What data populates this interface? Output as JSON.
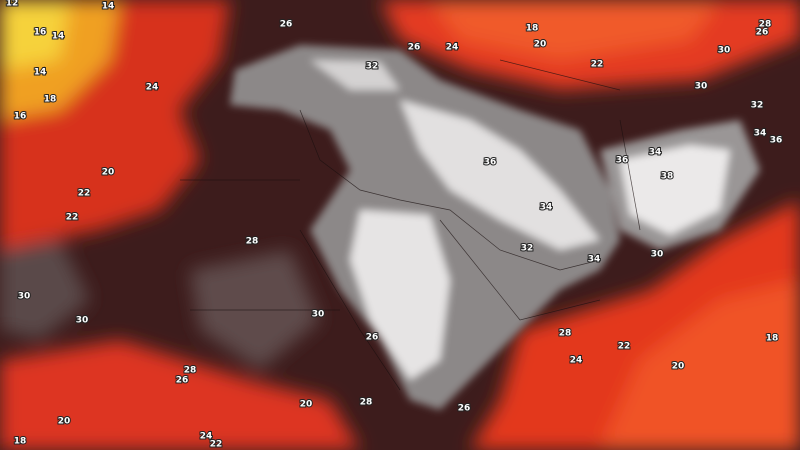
{
  "map": {
    "labels": [
      "12",
      "14",
      "16",
      "14",
      "14",
      "18",
      "16",
      "24",
      "26",
      "26",
      "24",
      "18",
      "20",
      "22",
      "30",
      "28",
      "26",
      "30",
      "32",
      "32",
      "34",
      "36",
      "36",
      "36",
      "34",
      "38",
      "34",
      "32",
      "34",
      "30",
      "20",
      "22",
      "22",
      "28",
      "30",
      "30",
      "30",
      "26",
      "28",
      "22",
      "24",
      "20",
      "18",
      "28",
      "26",
      "20",
      "28",
      "26",
      "20",
      "24",
      "22",
      "18"
    ]
  }
}
